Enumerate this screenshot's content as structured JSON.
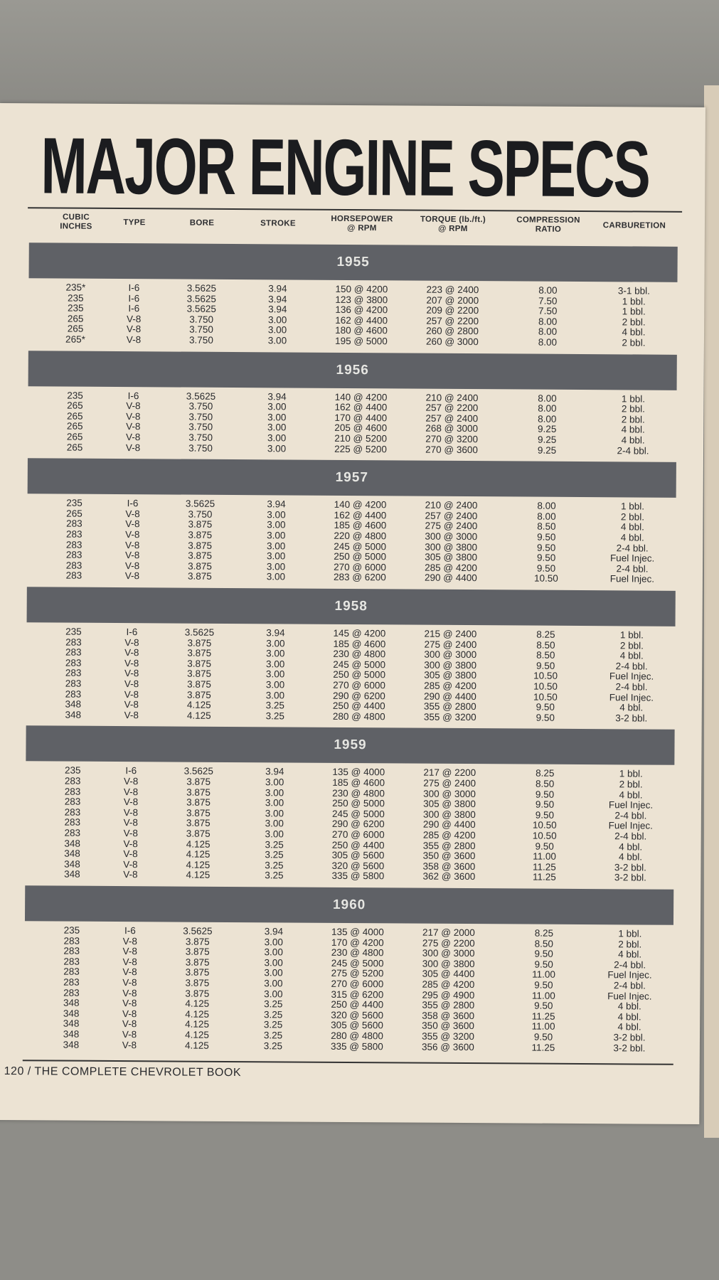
{
  "title": "MAJOR ENGINE SPECS",
  "columns": [
    "CUBIC\nINCHES",
    "TYPE",
    "BORE",
    "STROKE",
    "HORSEPOWER\n@ RPM",
    "TORQUE (lb./ft.)\n@ RPM",
    "COMPRESSION\nRATIO",
    "CARBURETION"
  ],
  "years": [
    {
      "year": "1955",
      "rows": [
        [
          "235*",
          "I-6",
          "3.5625",
          "3.94",
          "150 @ 4200",
          "223 @ 2400",
          "8.00",
          "3-1 bbl."
        ],
        [
          "235",
          "I-6",
          "3.5625",
          "3.94",
          "123 @ 3800",
          "207 @ 2000",
          "7.50",
          "1 bbl."
        ],
        [
          "235",
          "I-6",
          "3.5625",
          "3.94",
          "136 @ 4200",
          "209 @ 2200",
          "7.50",
          "1 bbl."
        ],
        [
          "265",
          "V-8",
          "3.750",
          "3.00",
          "162 @ 4400",
          "257 @ 2200",
          "8.00",
          "2 bbl."
        ],
        [
          "265",
          "V-8",
          "3.750",
          "3.00",
          "180 @ 4600",
          "260 @ 2800",
          "8.00",
          "4 bbl."
        ],
        [
          "265*",
          "V-8",
          "3.750",
          "3.00",
          "195 @ 5000",
          "260 @ 3000",
          "8.00",
          "2 bbl."
        ]
      ]
    },
    {
      "year": "1956",
      "rows": [
        [
          "235",
          "I-6",
          "3.5625",
          "3.94",
          "140 @ 4200",
          "210 @ 2400",
          "8.00",
          "1 bbl."
        ],
        [
          "265",
          "V-8",
          "3.750",
          "3.00",
          "162 @ 4400",
          "257 @ 2200",
          "8.00",
          "2 bbl."
        ],
        [
          "265",
          "V-8",
          "3.750",
          "3.00",
          "170 @ 4400",
          "257 @ 2400",
          "8.00",
          "2 bbl."
        ],
        [
          "265",
          "V-8",
          "3.750",
          "3.00",
          "205 @ 4600",
          "268 @ 3000",
          "9.25",
          "4 bbl."
        ],
        [
          "265",
          "V-8",
          "3.750",
          "3.00",
          "210 @ 5200",
          "270 @ 3200",
          "9.25",
          "4 bbl."
        ],
        [
          "265",
          "V-8",
          "3.750",
          "3.00",
          "225 @ 5200",
          "270 @ 3600",
          "9.25",
          "2-4 bbl."
        ]
      ]
    },
    {
      "year": "1957",
      "rows": [
        [
          "235",
          "I-6",
          "3.5625",
          "3.94",
          "140 @ 4200",
          "210 @ 2400",
          "8.00",
          "1 bbl."
        ],
        [
          "265",
          "V-8",
          "3.750",
          "3.00",
          "162 @ 4400",
          "257 @ 2400",
          "8.00",
          "2 bbl."
        ],
        [
          "283",
          "V-8",
          "3.875",
          "3.00",
          "185 @ 4600",
          "275 @ 2400",
          "8.50",
          "4 bbl."
        ],
        [
          "283",
          "V-8",
          "3.875",
          "3.00",
          "220 @ 4800",
          "300 @ 3000",
          "9.50",
          "4 bbl."
        ],
        [
          "283",
          "V-8",
          "3.875",
          "3.00",
          "245 @ 5000",
          "300 @ 3800",
          "9.50",
          "2-4 bbl."
        ],
        [
          "283",
          "V-8",
          "3.875",
          "3.00",
          "250 @ 5000",
          "305 @ 3800",
          "9.50",
          "Fuel Injec."
        ],
        [
          "283",
          "V-8",
          "3.875",
          "3.00",
          "270 @ 6000",
          "285 @ 4200",
          "9.50",
          "2-4 bbl."
        ],
        [
          "283",
          "V-8",
          "3.875",
          "3.00",
          "283 @ 6200",
          "290 @ 4400",
          "10.50",
          "Fuel Injec."
        ]
      ]
    },
    {
      "year": "1958",
      "rows": [
        [
          "235",
          "I-6",
          "3.5625",
          "3.94",
          "145 @ 4200",
          "215 @ 2400",
          "8.25",
          "1 bbl."
        ],
        [
          "283",
          "V-8",
          "3.875",
          "3.00",
          "185 @ 4600",
          "275 @ 2400",
          "8.50",
          "2 bbl."
        ],
        [
          "283",
          "V-8",
          "3.875",
          "3.00",
          "230 @ 4800",
          "300 @ 3000",
          "8.50",
          "4 bbl."
        ],
        [
          "283",
          "V-8",
          "3.875",
          "3.00",
          "245 @ 5000",
          "300 @ 3800",
          "9.50",
          "2-4 bbl."
        ],
        [
          "283",
          "V-8",
          "3.875",
          "3.00",
          "250 @ 5000",
          "305 @ 3800",
          "10.50",
          "Fuel Injec."
        ],
        [
          "283",
          "V-8",
          "3.875",
          "3.00",
          "270 @ 6000",
          "285 @ 4200",
          "10.50",
          "2-4 bbl."
        ],
        [
          "283",
          "V-8",
          "3.875",
          "3.00",
          "290 @ 6200",
          "290 @ 4400",
          "10.50",
          "Fuel Injec."
        ],
        [
          "348",
          "V-8",
          "4.125",
          "3.25",
          "250 @ 4400",
          "355 @ 2800",
          "9.50",
          "4 bbl."
        ],
        [
          "348",
          "V-8",
          "4.125",
          "3.25",
          "280 @ 4800",
          "355 @ 3200",
          "9.50",
          "3-2 bbl."
        ]
      ]
    },
    {
      "year": "1959",
      "rows": [
        [
          "235",
          "I-6",
          "3.5625",
          "3.94",
          "135 @ 4000",
          "217 @ 2200",
          "8.25",
          "1 bbl."
        ],
        [
          "283",
          "V-8",
          "3.875",
          "3.00",
          "185 @ 4600",
          "275 @ 2400",
          "8.50",
          "2 bbl."
        ],
        [
          "283",
          "V-8",
          "3.875",
          "3.00",
          "230 @ 4800",
          "300 @ 3000",
          "9.50",
          "4 bbl."
        ],
        [
          "283",
          "V-8",
          "3.875",
          "3.00",
          "250 @ 5000",
          "305 @ 3800",
          "9.50",
          "Fuel Injec."
        ],
        [
          "283",
          "V-8",
          "3.875",
          "3.00",
          "245 @ 5000",
          "300 @ 3800",
          "9.50",
          "2-4 bbl."
        ],
        [
          "283",
          "V-8",
          "3.875",
          "3.00",
          "290 @ 6200",
          "290 @ 4400",
          "10.50",
          "Fuel Injec."
        ],
        [
          "283",
          "V-8",
          "3.875",
          "3.00",
          "270 @ 6000",
          "285 @ 4200",
          "10.50",
          "2-4 bbl."
        ],
        [
          "348",
          "V-8",
          "4.125",
          "3.25",
          "250 @ 4400",
          "355 @ 2800",
          "9.50",
          "4 bbl."
        ],
        [
          "348",
          "V-8",
          "4.125",
          "3.25",
          "305 @ 5600",
          "350 @ 3600",
          "11.00",
          "4 bbl."
        ],
        [
          "348",
          "V-8",
          "4.125",
          "3.25",
          "320 @ 5600",
          "358 @ 3600",
          "11.25",
          "3-2 bbl."
        ],
        [
          "348",
          "V-8",
          "4.125",
          "3.25",
          "335 @ 5800",
          "362 @ 3600",
          "11.25",
          "3-2 bbl."
        ]
      ]
    },
    {
      "year": "1960",
      "rows": [
        [
          "235",
          "I-6",
          "3.5625",
          "3.94",
          "135 @ 4000",
          "217 @ 2000",
          "8.25",
          "1 bbl."
        ],
        [
          "283",
          "V-8",
          "3.875",
          "3.00",
          "170 @ 4200",
          "275 @ 2200",
          "8.50",
          "2 bbl."
        ],
        [
          "283",
          "V-8",
          "3.875",
          "3.00",
          "230 @ 4800",
          "300 @ 3000",
          "9.50",
          "4 bbl."
        ],
        [
          "283",
          "V-8",
          "3.875",
          "3.00",
          "245 @ 5000",
          "300 @ 3800",
          "9.50",
          "2-4 bbl."
        ],
        [
          "283",
          "V-8",
          "3.875",
          "3.00",
          "275 @ 5200",
          "305 @ 4400",
          "11.00",
          "Fuel Injec."
        ],
        [
          "283",
          "V-8",
          "3.875",
          "3.00",
          "270 @ 6000",
          "285 @ 4200",
          "9.50",
          "2-4 bbl."
        ],
        [
          "283",
          "V-8",
          "3.875",
          "3.00",
          "315 @ 6200",
          "295 @ 4900",
          "11.00",
          "Fuel Injec."
        ],
        [
          "348",
          "V-8",
          "4.125",
          "3.25",
          "250 @ 4400",
          "355 @ 2800",
          "9.50",
          "4 bbl."
        ],
        [
          "348",
          "V-8",
          "4.125",
          "3.25",
          "320 @ 5600",
          "358 @ 3600",
          "11.25",
          "4 bbl."
        ],
        [
          "348",
          "V-8",
          "4.125",
          "3.25",
          "305 @ 5600",
          "350 @ 3600",
          "11.00",
          "4 bbl."
        ],
        [
          "348",
          "V-8",
          "4.125",
          "3.25",
          "280 @ 4800",
          "355 @ 3200",
          "9.50",
          "3-2 bbl."
        ],
        [
          "348",
          "V-8",
          "4.125",
          "3.25",
          "335 @ 5800",
          "356 @ 3600",
          "11.25",
          "3-2 bbl."
        ]
      ]
    }
  ],
  "footer": "120 / THE COMPLETE CHEVROLET BOOK",
  "colors": {
    "band": "#5f6166",
    "paper": "#ece3d3",
    "ink": "#2a2b2e"
  }
}
